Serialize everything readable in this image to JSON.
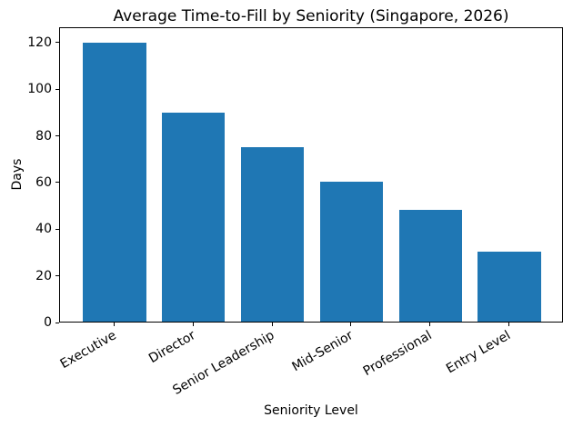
{
  "chart_data": {
    "type": "bar",
    "title": "Average Time-to-Fill by Seniority (Singapore, 2026)",
    "xlabel": "Seniority Level",
    "ylabel": "Days",
    "categories": [
      "Executive",
      "Director",
      "Senior Leadership",
      "Mid-Senior",
      "Professional",
      "Entry Level"
    ],
    "values": [
      120,
      90,
      75,
      60,
      48,
      30
    ],
    "yticks": [
      0,
      20,
      40,
      60,
      80,
      100,
      120
    ],
    "ylim": [
      0,
      126.6
    ],
    "bar_color": "#1f77b4",
    "grid": false,
    "legend": null,
    "tick_label_rotation_deg": 30
  }
}
